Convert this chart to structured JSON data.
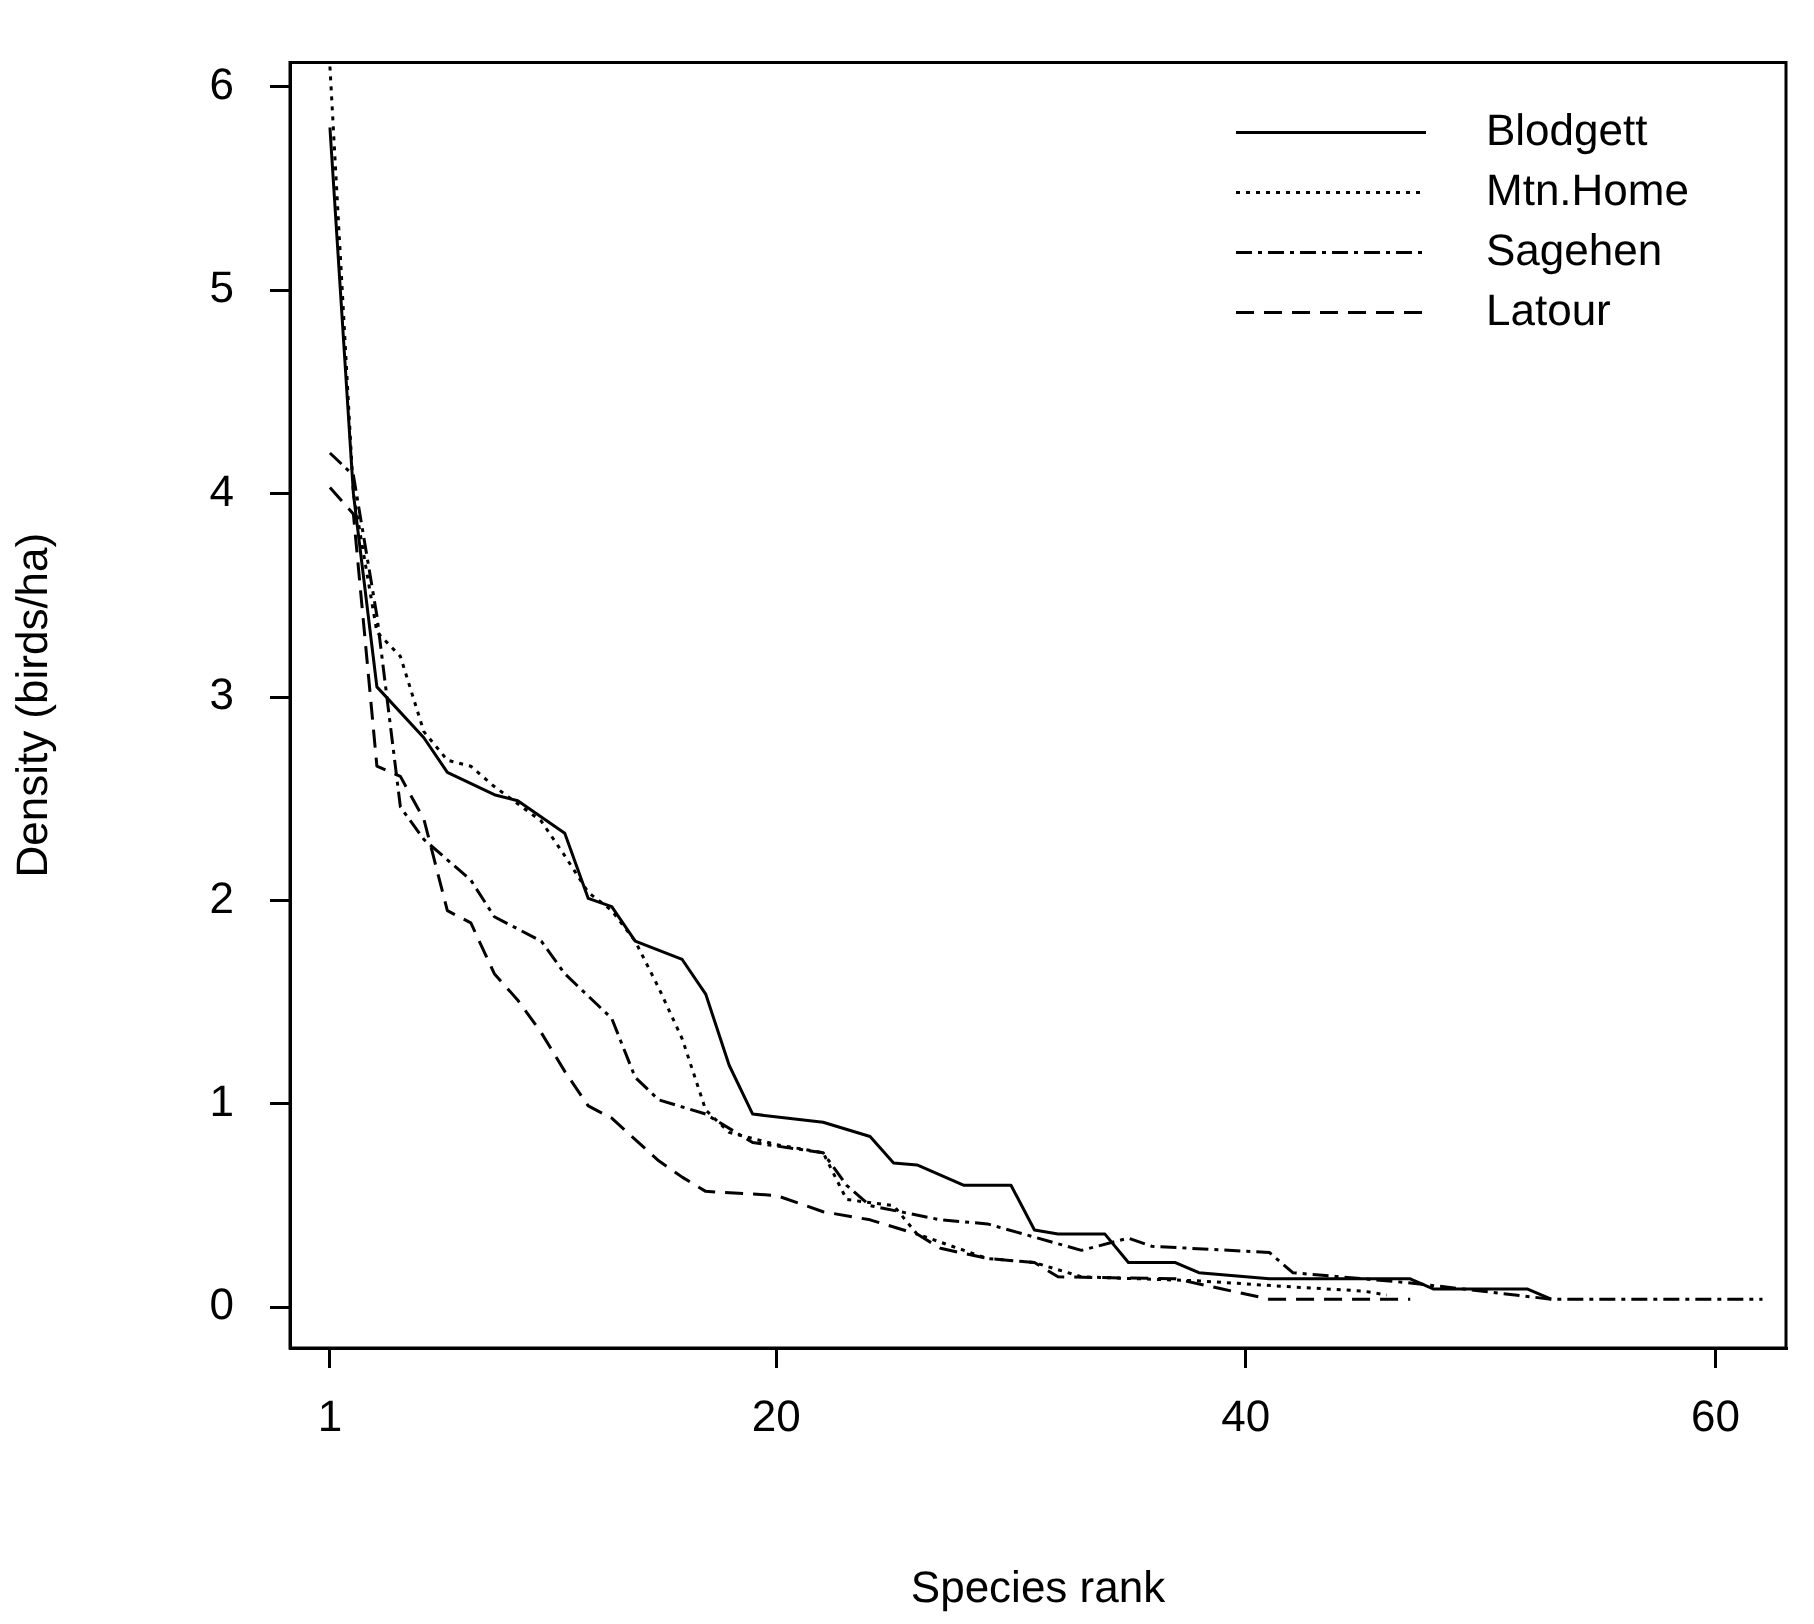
{
  "chart_data": {
    "type": "line",
    "xlabel": "Species rank",
    "ylabel": "Density (birds/ha)",
    "xlim": [
      -0.7,
      63
    ],
    "ylim": [
      -0.2,
      6.12
    ],
    "xticks": [
      1,
      20,
      40,
      60
    ],
    "yticks": [
      0,
      1,
      2,
      3,
      4,
      5,
      6
    ],
    "legend": "top right",
    "marker": "none",
    "series": [
      {
        "name": "Blodgett",
        "color": "#000000",
        "line_style": "solid",
        "x": [
          1,
          2,
          3,
          5,
          6,
          8,
          9,
          11,
          12,
          13,
          14,
          16,
          17,
          18,
          19,
          22,
          24,
          25,
          26,
          28,
          30,
          31,
          32,
          34,
          35,
          37,
          38,
          40,
          41,
          47,
          48,
          52,
          53
        ],
        "values": [
          5.8,
          4.0,
          3.05,
          2.8,
          2.63,
          2.52,
          2.49,
          2.33,
          2.01,
          1.97,
          1.8,
          1.71,
          1.54,
          1.19,
          0.95,
          0.91,
          0.84,
          0.71,
          0.7,
          0.6,
          0.6,
          0.38,
          0.36,
          0.36,
          0.22,
          0.22,
          0.17,
          0.15,
          0.14,
          0.14,
          0.09,
          0.09,
          0.04
        ]
      },
      {
        "name": "Mtn.Home",
        "color": "#000000",
        "line_style": "dotted",
        "x": [
          1,
          2,
          3,
          4,
          5,
          6,
          7,
          8,
          10,
          11,
          12,
          13,
          14,
          15,
          16,
          17,
          18,
          20,
          22,
          23,
          25,
          26,
          29,
          31,
          33,
          38,
          42,
          45,
          46
        ],
        "values": [
          6.1,
          4.0,
          3.32,
          3.2,
          2.83,
          2.69,
          2.66,
          2.56,
          2.39,
          2.22,
          2.04,
          1.95,
          1.8,
          1.57,
          1.32,
          0.97,
          0.86,
          0.8,
          0.76,
          0.53,
          0.5,
          0.36,
          0.24,
          0.22,
          0.15,
          0.13,
          0.1,
          0.08,
          0.06
        ]
      },
      {
        "name": "Sagehen",
        "color": "#000000",
        "line_style": "dashdot",
        "x": [
          1,
          2,
          3,
          4,
          5,
          6,
          7,
          8,
          10,
          11,
          13,
          14,
          15,
          17,
          19,
          22,
          23,
          24,
          27,
          29,
          33,
          35,
          36,
          41,
          42,
          47,
          53,
          62
        ],
        "values": [
          4.2,
          4.09,
          3.4,
          2.46,
          2.3,
          2.2,
          2.1,
          1.92,
          1.8,
          1.64,
          1.42,
          1.13,
          1.02,
          0.95,
          0.81,
          0.76,
          0.6,
          0.5,
          0.43,
          0.41,
          0.28,
          0.34,
          0.3,
          0.27,
          0.17,
          0.12,
          0.04,
          0.04
        ]
      },
      {
        "name": "Latour",
        "color": "#000000",
        "line_style": "dashed",
        "x": [
          1,
          2,
          3,
          4,
          5,
          6,
          7,
          8,
          9,
          10,
          11,
          12,
          13,
          15,
          16,
          17,
          20,
          22,
          24,
          26,
          27,
          29,
          31,
          32,
          37,
          39,
          41,
          47
        ],
        "values": [
          4.03,
          3.9,
          2.66,
          2.61,
          2.4,
          1.95,
          1.89,
          1.64,
          1.51,
          1.35,
          1.16,
          0.99,
          0.93,
          0.72,
          0.64,
          0.57,
          0.55,
          0.47,
          0.43,
          0.36,
          0.29,
          0.24,
          0.22,
          0.15,
          0.14,
          0.09,
          0.04,
          0.04
        ]
      }
    ]
  }
}
